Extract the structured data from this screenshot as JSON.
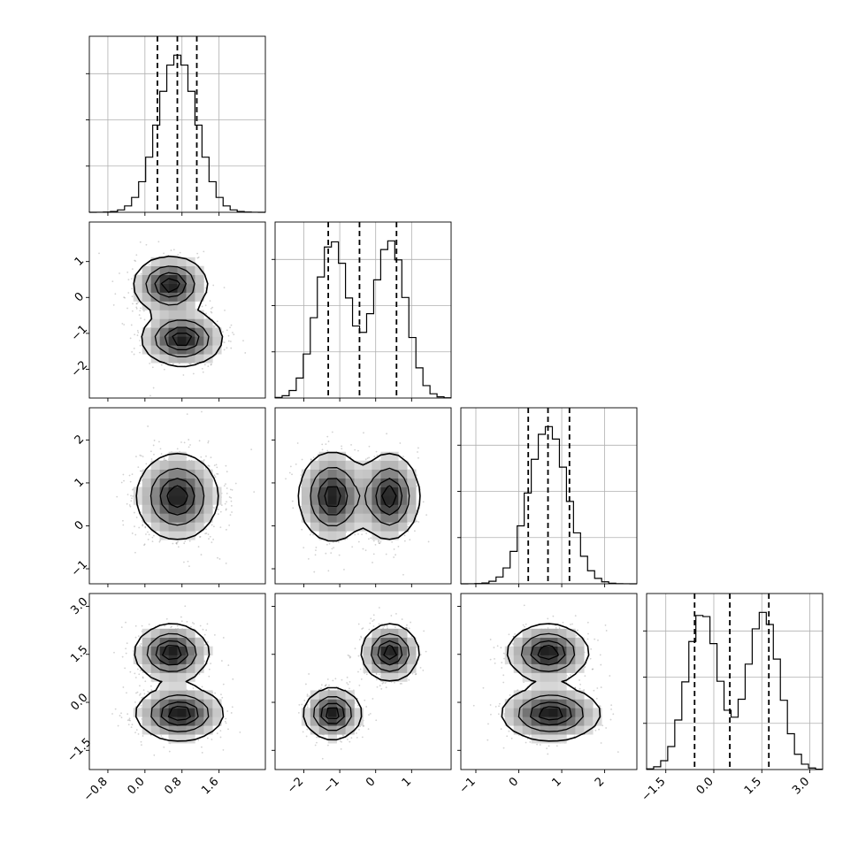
{
  "chart_data": {
    "type": "corner",
    "title": "",
    "parameters": [
      {
        "label": "",
        "range": [
          -1.2,
          2.6
        ],
        "ticks": [
          -0.8,
          0.0,
          0.8,
          1.6
        ],
        "tick_labels": [
          "−0.8",
          "0.0",
          "0.8",
          "1.6"
        ],
        "modes": [
          {
            "m": 0.7,
            "s": 0.42,
            "w": 1
          }
        ],
        "quantiles": [
          0.27,
          0.7,
          1.12
        ],
        "grid": true
      },
      {
        "label": "",
        "range": [
          -2.8,
          2.1
        ],
        "ticks": [
          -2,
          -1,
          0,
          1
        ],
        "tick_labels": [
          "−2",
          "−1",
          "0",
          "1"
        ],
        "modes": [
          {
            "m": -1.2,
            "s": 0.45,
            "w": 1
          },
          {
            "m": 0.4,
            "s": 0.45,
            "w": 1
          }
        ],
        "quantiles": [
          -1.32,
          -0.45,
          0.58
        ],
        "grid": true
      },
      {
        "label": "",
        "range": [
          -1.35,
          2.75
        ],
        "ticks": [
          -1,
          0,
          1,
          2
        ],
        "tick_labels": [
          "−1",
          "0",
          "1",
          "2"
        ],
        "modes": [
          {
            "m": 0.68,
            "s": 0.45,
            "w": 1
          }
        ],
        "quantiles": [
          0.22,
          0.68,
          1.18
        ],
        "grid": true
      },
      {
        "label": "",
        "range": [
          -2.1,
          3.4
        ],
        "ticks": [
          -1.5,
          0.0,
          1.5,
          3.0
        ],
        "tick_labels": [
          "−1.5",
          "0.0",
          "1.5",
          "3.0"
        ],
        "modes": [
          {
            "m": -0.35,
            "s": 0.5,
            "w": 1
          },
          {
            "m": 1.55,
            "s": 0.5,
            "w": 1
          }
        ],
        "quantiles": [
          -0.6,
          0.5,
          1.72
        ],
        "grid": true
      }
    ],
    "pairs": [
      {
        "x": 0,
        "y": 1,
        "clusters": [
          {
            "mx": 0.55,
            "my": 0.35,
            "sx": 0.38,
            "sy": 0.38,
            "w": 1
          },
          {
            "mx": 0.8,
            "my": -1.15,
            "sx": 0.42,
            "sy": 0.36,
            "w": 1
          }
        ]
      },
      {
        "x": 0,
        "y": 2,
        "clusters": [
          {
            "mx": 0.7,
            "my": 0.68,
            "sx": 0.42,
            "sy": 0.48,
            "w": 1
          }
        ]
      },
      {
        "x": 1,
        "y": 2,
        "clusters": [
          {
            "mx": -1.2,
            "my": 0.68,
            "sx": 0.45,
            "sy": 0.5,
            "w": 1
          },
          {
            "mx": 0.38,
            "my": 0.68,
            "sx": 0.4,
            "sy": 0.48,
            "w": 1
          }
        ]
      },
      {
        "x": 0,
        "y": 3,
        "clusters": [
          {
            "mx": 0.58,
            "my": 1.55,
            "sx": 0.38,
            "sy": 0.42,
            "w": 1
          },
          {
            "mx": 0.75,
            "my": -0.35,
            "sx": 0.45,
            "sy": 0.4,
            "w": 1
          }
        ]
      },
      {
        "x": 1,
        "y": 3,
        "clusters": [
          {
            "mx": 0.4,
            "my": 1.55,
            "sx": 0.38,
            "sy": 0.42,
            "w": 1
          },
          {
            "mx": -1.2,
            "my": -0.35,
            "sx": 0.38,
            "sy": 0.38,
            "w": 1
          }
        ]
      },
      {
        "x": 2,
        "y": 3,
        "clusters": [
          {
            "mx": 0.68,
            "my": 1.55,
            "sx": 0.45,
            "sy": 0.42,
            "w": 1
          },
          {
            "mx": 0.75,
            "my": -0.35,
            "sx": 0.55,
            "sy": 0.4,
            "w": 1
          }
        ]
      }
    ],
    "contour_levels": [
      0.118,
      0.393,
      0.675,
      0.865
    ],
    "scatter_color": "#000000",
    "contour_color": "#000000",
    "grid_color": "#b0b0b0"
  }
}
